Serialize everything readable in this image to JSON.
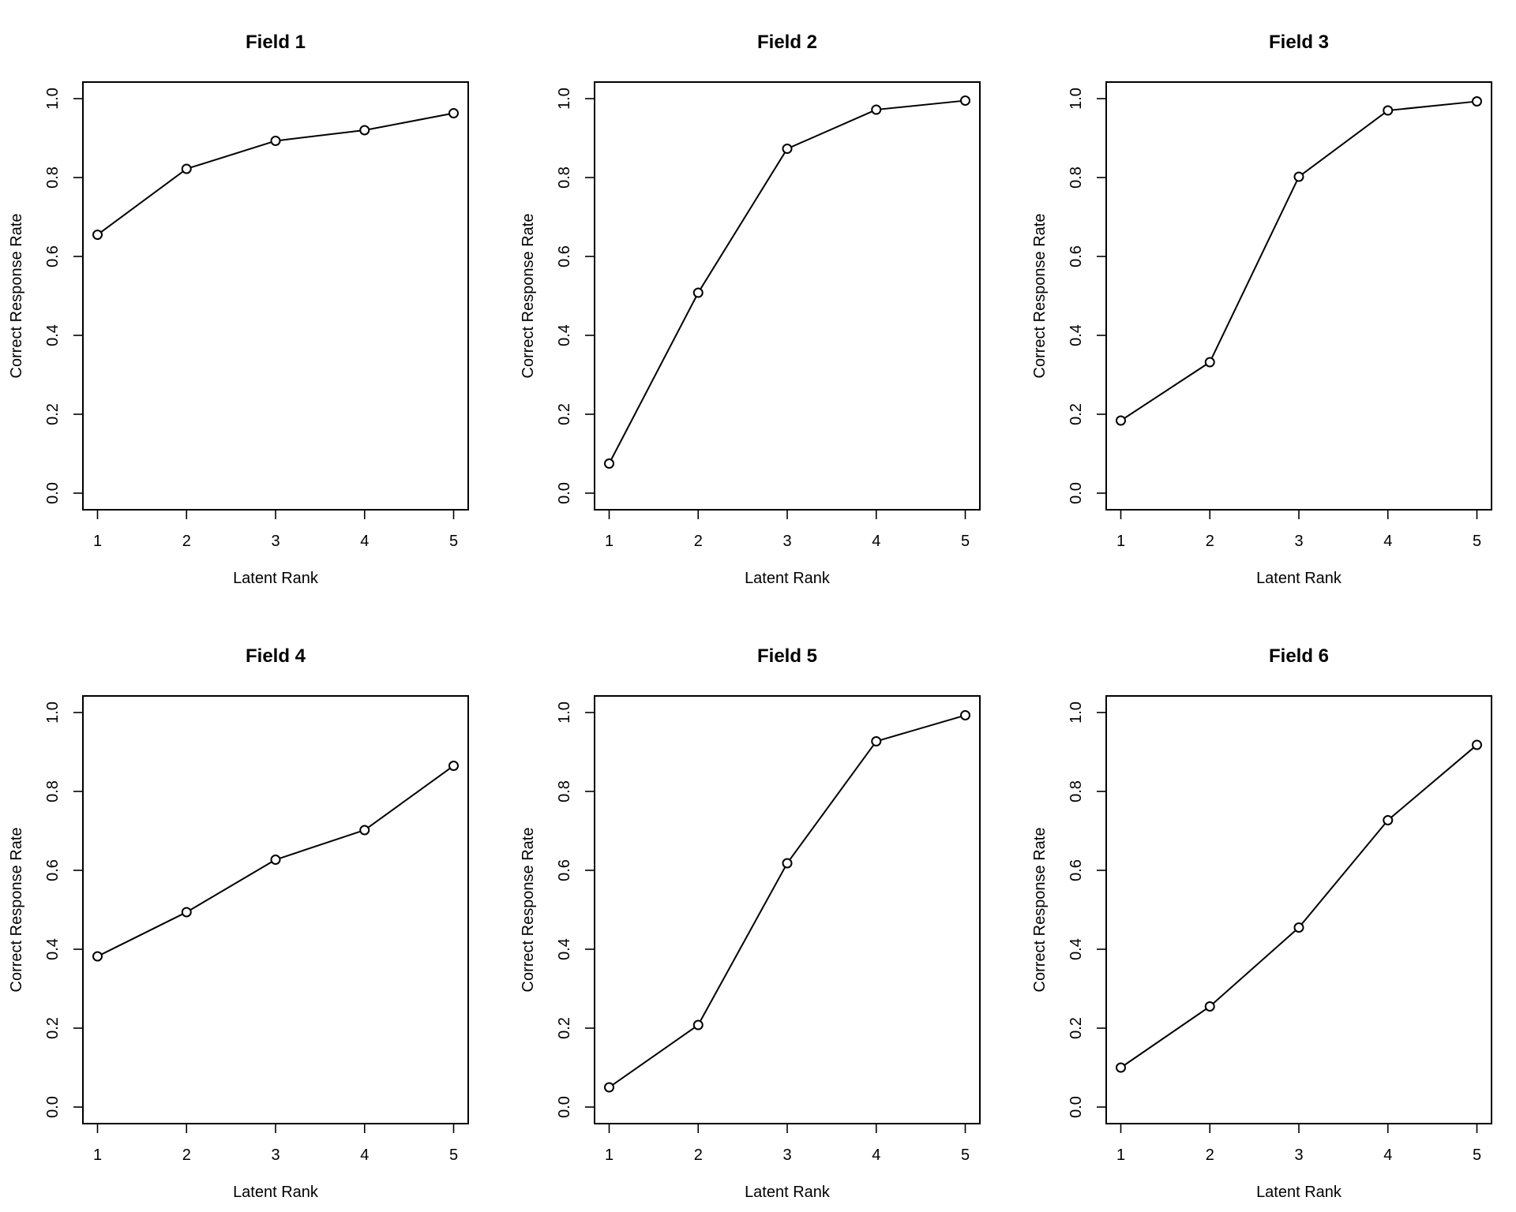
{
  "chart_data": [
    {
      "type": "line",
      "title": "Field 1",
      "xlabel": "Latent Rank",
      "ylabel": "Correct Response Rate",
      "x": [
        1,
        2,
        3,
        4,
        5
      ],
      "y": [
        0.655,
        0.822,
        0.893,
        0.92,
        0.963
      ],
      "xticks": [
        "1",
        "2",
        "3",
        "4",
        "5"
      ],
      "yticks": [
        "0.0",
        "0.2",
        "0.4",
        "0.6",
        "0.8",
        "1.0"
      ],
      "xlim": [
        1,
        5
      ],
      "ylim": [
        0,
        1
      ],
      "grid": false,
      "marker": "open-circle"
    },
    {
      "type": "line",
      "title": "Field 2",
      "xlabel": "Latent Rank",
      "ylabel": "Correct Response Rate",
      "x": [
        1,
        2,
        3,
        4,
        5
      ],
      "y": [
        0.075,
        0.508,
        0.873,
        0.972,
        0.995
      ],
      "xticks": [
        "1",
        "2",
        "3",
        "4",
        "5"
      ],
      "yticks": [
        "0.0",
        "0.2",
        "0.4",
        "0.6",
        "0.8",
        "1.0"
      ],
      "xlim": [
        1,
        5
      ],
      "ylim": [
        0,
        1
      ],
      "grid": false,
      "marker": "open-circle"
    },
    {
      "type": "line",
      "title": "Field 3",
      "xlabel": "Latent Rank",
      "ylabel": "Correct Response Rate",
      "x": [
        1,
        2,
        3,
        4,
        5
      ],
      "y": [
        0.184,
        0.332,
        0.802,
        0.97,
        0.993
      ],
      "xticks": [
        "1",
        "2",
        "3",
        "4",
        "5"
      ],
      "yticks": [
        "0.0",
        "0.2",
        "0.4",
        "0.6",
        "0.8",
        "1.0"
      ],
      "xlim": [
        1,
        5
      ],
      "ylim": [
        0,
        1
      ],
      "grid": false,
      "marker": "open-circle"
    },
    {
      "type": "line",
      "title": "Field 4",
      "xlabel": "Latent Rank",
      "ylabel": "Correct Response Rate",
      "x": [
        1,
        2,
        3,
        4,
        5
      ],
      "y": [
        0.382,
        0.494,
        0.627,
        0.702,
        0.865
      ],
      "xticks": [
        "1",
        "2",
        "3",
        "4",
        "5"
      ],
      "yticks": [
        "0.0",
        "0.2",
        "0.4",
        "0.6",
        "0.8",
        "1.0"
      ],
      "xlim": [
        1,
        5
      ],
      "ylim": [
        0,
        1
      ],
      "grid": false,
      "marker": "open-circle"
    },
    {
      "type": "line",
      "title": "Field 5",
      "xlabel": "Latent Rank",
      "ylabel": "Correct Response Rate",
      "x": [
        1,
        2,
        3,
        4,
        5
      ],
      "y": [
        0.05,
        0.208,
        0.618,
        0.927,
        0.993
      ],
      "xticks": [
        "1",
        "2",
        "3",
        "4",
        "5"
      ],
      "yticks": [
        "0.0",
        "0.2",
        "0.4",
        "0.6",
        "0.8",
        "1.0"
      ],
      "xlim": [
        1,
        5
      ],
      "ylim": [
        0,
        1
      ],
      "grid": false,
      "marker": "open-circle"
    },
    {
      "type": "line",
      "title": "Field 6",
      "xlabel": "Latent Rank",
      "ylabel": "Correct Response Rate",
      "x": [
        1,
        2,
        3,
        4,
        5
      ],
      "y": [
        0.1,
        0.255,
        0.455,
        0.727,
        0.918
      ],
      "xticks": [
        "1",
        "2",
        "3",
        "4",
        "5"
      ],
      "yticks": [
        "0.0",
        "0.2",
        "0.4",
        "0.6",
        "0.8",
        "1.0"
      ],
      "xlim": [
        1,
        5
      ],
      "ylim": [
        0,
        1
      ],
      "grid": false,
      "marker": "open-circle"
    }
  ]
}
